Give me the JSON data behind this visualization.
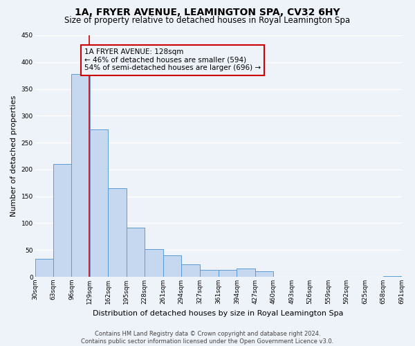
{
  "title": "1A, FRYER AVENUE, LEAMINGTON SPA, CV32 6HY",
  "subtitle": "Size of property relative to detached houses in Royal Leamington Spa",
  "xlabel": "Distribution of detached houses by size in Royal Leamington Spa",
  "ylabel": "Number of detached properties",
  "bin_edges": [
    30,
    63,
    96,
    129,
    162,
    195,
    228,
    261,
    294,
    327,
    361,
    394,
    427,
    460,
    493,
    526,
    559,
    592,
    625,
    658,
    691
  ],
  "bar_heights": [
    33,
    210,
    378,
    275,
    165,
    91,
    52,
    40,
    23,
    13,
    13,
    15,
    10,
    0,
    0,
    0,
    0,
    0,
    0,
    1
  ],
  "bar_color": "#c5d8f0",
  "bar_edge_color": "#5b9bd5",
  "property_size": 128,
  "vline_color": "#cc0000",
  "annotation_text": "1A FRYER AVENUE: 128sqm\n← 46% of detached houses are smaller (594)\n54% of semi-detached houses are larger (696) →",
  "annotation_box_edgecolor": "#cc0000",
  "annotation_fontsize": 7.5,
  "ylim": [
    0,
    450
  ],
  "yticks": [
    0,
    50,
    100,
    150,
    200,
    250,
    300,
    350,
    400,
    450
  ],
  "tick_labels": [
    "30sqm",
    "63sqm",
    "96sqm",
    "129sqm",
    "162sqm",
    "195sqm",
    "228sqm",
    "261sqm",
    "294sqm",
    "327sqm",
    "361sqm",
    "394sqm",
    "427sqm",
    "460sqm",
    "493sqm",
    "526sqm",
    "559sqm",
    "592sqm",
    "625sqm",
    "658sqm",
    "691sqm"
  ],
  "footer_text": "Contains HM Land Registry data © Crown copyright and database right 2024.\nContains public sector information licensed under the Open Government Licence v3.0.",
  "bg_color": "#eef2f9",
  "grid_color": "#ffffff",
  "title_fontsize": 10,
  "subtitle_fontsize": 8.5,
  "xlabel_fontsize": 8,
  "ylabel_fontsize": 8,
  "tick_fontsize": 6.5,
  "footer_fontsize": 6
}
